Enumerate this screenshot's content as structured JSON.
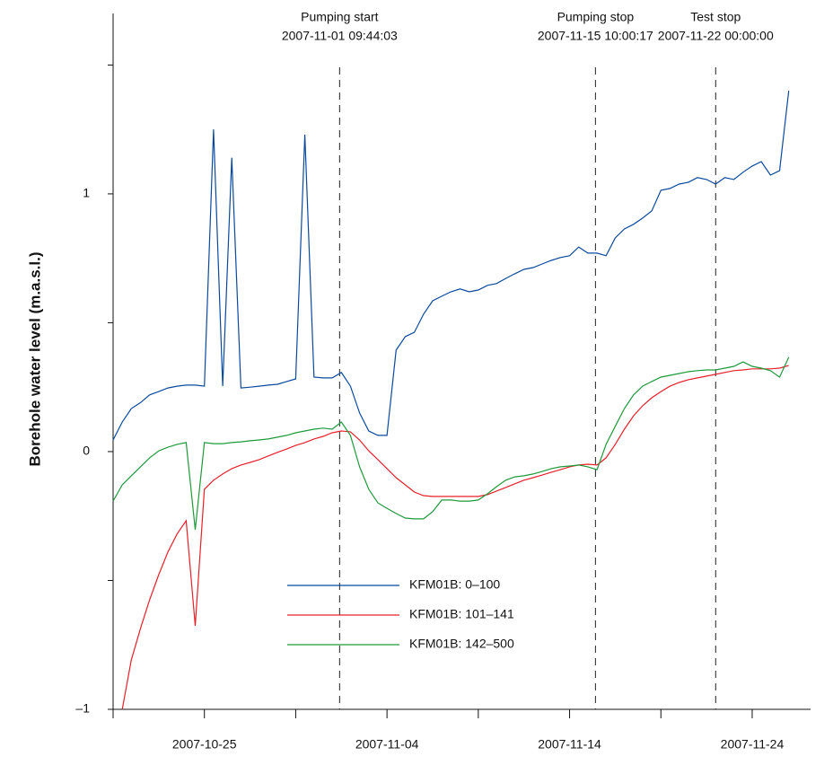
{
  "chart_data": {
    "type": "line",
    "y_label": "Borehole water level (m.a.s.l.)",
    "x": [
      "2007-10-20 00:00",
      "2007-10-20 12:00",
      "2007-10-21 00:00",
      "2007-10-21 12:00",
      "2007-10-22 00:00",
      "2007-10-22 12:00",
      "2007-10-23 00:00",
      "2007-10-23 12:00",
      "2007-10-24 00:00",
      "2007-10-24 12:00",
      "2007-10-25 00:00",
      "2007-10-25 12:00",
      "2007-10-26 00:00",
      "2007-10-26 12:00",
      "2007-10-27 00:00",
      "2007-10-27 12:00",
      "2007-10-28 00:00",
      "2007-10-28 12:00",
      "2007-10-29 00:00",
      "2007-10-29 12:00",
      "2007-10-30 00:00",
      "2007-10-30 12:00",
      "2007-10-31 00:00",
      "2007-10-31 12:00",
      "2007-11-01 00:00",
      "2007-11-01 12:00",
      "2007-11-02 00:00",
      "2007-11-02 12:00",
      "2007-11-03 00:00",
      "2007-11-03 12:00",
      "2007-11-04 00:00",
      "2007-11-04 12:00",
      "2007-11-05 00:00",
      "2007-11-05 12:00",
      "2007-11-06 00:00",
      "2007-11-06 12:00",
      "2007-11-07 00:00",
      "2007-11-07 12:00",
      "2007-11-08 00:00",
      "2007-11-08 12:00",
      "2007-11-09 00:00",
      "2007-11-09 12:00",
      "2007-11-10 00:00",
      "2007-11-10 12:00",
      "2007-11-11 00:00",
      "2007-11-11 12:00",
      "2007-11-12 00:00",
      "2007-11-12 12:00",
      "2007-11-13 00:00",
      "2007-11-13 12:00",
      "2007-11-14 00:00",
      "2007-11-14 12:00",
      "2007-11-15 00:00",
      "2007-11-15 12:00",
      "2007-11-16 00:00",
      "2007-11-16 12:00",
      "2007-11-17 00:00",
      "2007-11-17 12:00",
      "2007-11-18 00:00",
      "2007-11-18 12:00",
      "2007-11-19 00:00",
      "2007-11-19 12:00",
      "2007-11-20 00:00",
      "2007-11-20 12:00",
      "2007-11-21 00:00",
      "2007-11-21 12:00",
      "2007-11-22 00:00",
      "2007-11-22 12:00",
      "2007-11-23 00:00",
      "2007-11-23 12:00",
      "2007-11-24 00:00",
      "2007-11-24 12:00",
      "2007-11-25 00:00",
      "2007-11-25 12:00",
      "2007-11-26 00:00"
    ],
    "series": [
      {
        "name": "KFM01B: 0–100",
        "color": "#0a4a9e",
        "values": [
          0.045,
          0.115,
          0.167,
          0.19,
          0.22,
          0.233,
          0.247,
          0.254,
          0.258,
          0.258,
          0.254,
          1.25,
          0.254,
          1.14,
          0.247,
          0.25,
          0.254,
          0.258,
          0.261,
          0.272,
          0.282,
          1.23,
          0.289,
          0.286,
          0.286,
          0.307,
          0.254,
          0.15,
          0.08,
          0.063,
          0.063,
          0.394,
          0.446,
          0.463,
          0.533,
          0.585,
          0.603,
          0.62,
          0.631,
          0.62,
          0.627,
          0.645,
          0.652,
          0.672,
          0.69,
          0.707,
          0.714,
          0.728,
          0.742,
          0.753,
          0.76,
          0.794,
          0.77,
          0.77,
          0.76,
          0.829,
          0.864,
          0.882,
          0.906,
          0.934,
          1.014,
          1.021,
          1.038,
          1.045,
          1.063,
          1.056,
          1.038,
          1.063,
          1.056,
          1.084,
          1.108,
          1.125,
          1.073,
          1.09,
          1.4
        ]
      },
      {
        "name": "KFM01B: 101–141",
        "color": "#e8202a",
        "values": [
          null,
          -1.0,
          -0.808,
          -0.686,
          -0.575,
          -0.477,
          -0.39,
          -0.32,
          -0.268,
          -0.676,
          -0.146,
          -0.111,
          -0.087,
          -0.066,
          -0.052,
          -0.042,
          -0.031,
          -0.017,
          -0.003,
          0.01,
          0.024,
          0.035,
          0.049,
          0.059,
          0.073,
          0.08,
          0.077,
          0.045,
          0.003,
          -0.031,
          -0.066,
          -0.101,
          -0.129,
          -0.157,
          -0.171,
          -0.174,
          -0.174,
          -0.174,
          -0.174,
          -0.174,
          -0.174,
          -0.167,
          -0.153,
          -0.139,
          -0.125,
          -0.111,
          -0.101,
          -0.091,
          -0.08,
          -0.07,
          -0.059,
          -0.052,
          -0.049,
          -0.052,
          -0.024,
          0.028,
          0.087,
          0.139,
          0.178,
          0.209,
          0.233,
          0.254,
          0.268,
          0.279,
          0.286,
          0.293,
          0.3,
          0.307,
          0.314,
          0.317,
          0.321,
          0.321,
          0.321,
          0.324,
          0.334
        ]
      },
      {
        "name": "KFM01B: 142–500",
        "color": "#1e9a3a",
        "values": [
          -0.192,
          -0.129,
          -0.094,
          -0.059,
          -0.024,
          0.003,
          0.017,
          0.028,
          0.035,
          -0.303,
          0.035,
          0.031,
          0.031,
          0.035,
          0.038,
          0.042,
          0.045,
          0.049,
          0.056,
          0.063,
          0.073,
          0.08,
          0.087,
          0.091,
          0.087,
          0.115,
          0.063,
          -0.059,
          -0.146,
          -0.199,
          -0.22,
          -0.24,
          -0.258,
          -0.261,
          -0.261,
          -0.233,
          -0.188,
          -0.188,
          -0.192,
          -0.192,
          -0.188,
          -0.164,
          -0.136,
          -0.111,
          -0.098,
          -0.094,
          -0.087,
          -0.077,
          -0.066,
          -0.059,
          -0.056,
          -0.052,
          -0.059,
          -0.07,
          0.028,
          0.098,
          0.167,
          0.22,
          0.254,
          0.272,
          0.289,
          0.296,
          0.303,
          0.31,
          0.314,
          0.317,
          0.317,
          0.324,
          0.331,
          0.348,
          0.331,
          0.324,
          0.314,
          0.289,
          0.366
        ]
      }
    ],
    "annotations": [
      {
        "label": "Pumping start",
        "x": "2007-11-01 09:44:03"
      },
      {
        "label": "Pumping stop",
        "x": "2007-11-15 10:00:17"
      },
      {
        "label": "Test stop",
        "x": "2007-11-22 00:00:00"
      }
    ],
    "xlim": [
      "2007-10-20",
      "2007-11-27"
    ],
    "xticks": [
      "2007-10-25",
      "2007-11-04",
      "2007-11-14",
      "2007-11-24"
    ],
    "xminor_ticks": [
      "2007-10-20",
      "2007-10-30",
      "2007-11-09",
      "2007-11-19"
    ],
    "ylim": [
      -1,
      1.7
    ],
    "yticks": [
      {
        "value": -1,
        "label": "–1"
      },
      0,
      1
    ],
    "yminor_ticks": [
      -0.5,
      0.5,
      1.5
    ],
    "grid": false
  }
}
